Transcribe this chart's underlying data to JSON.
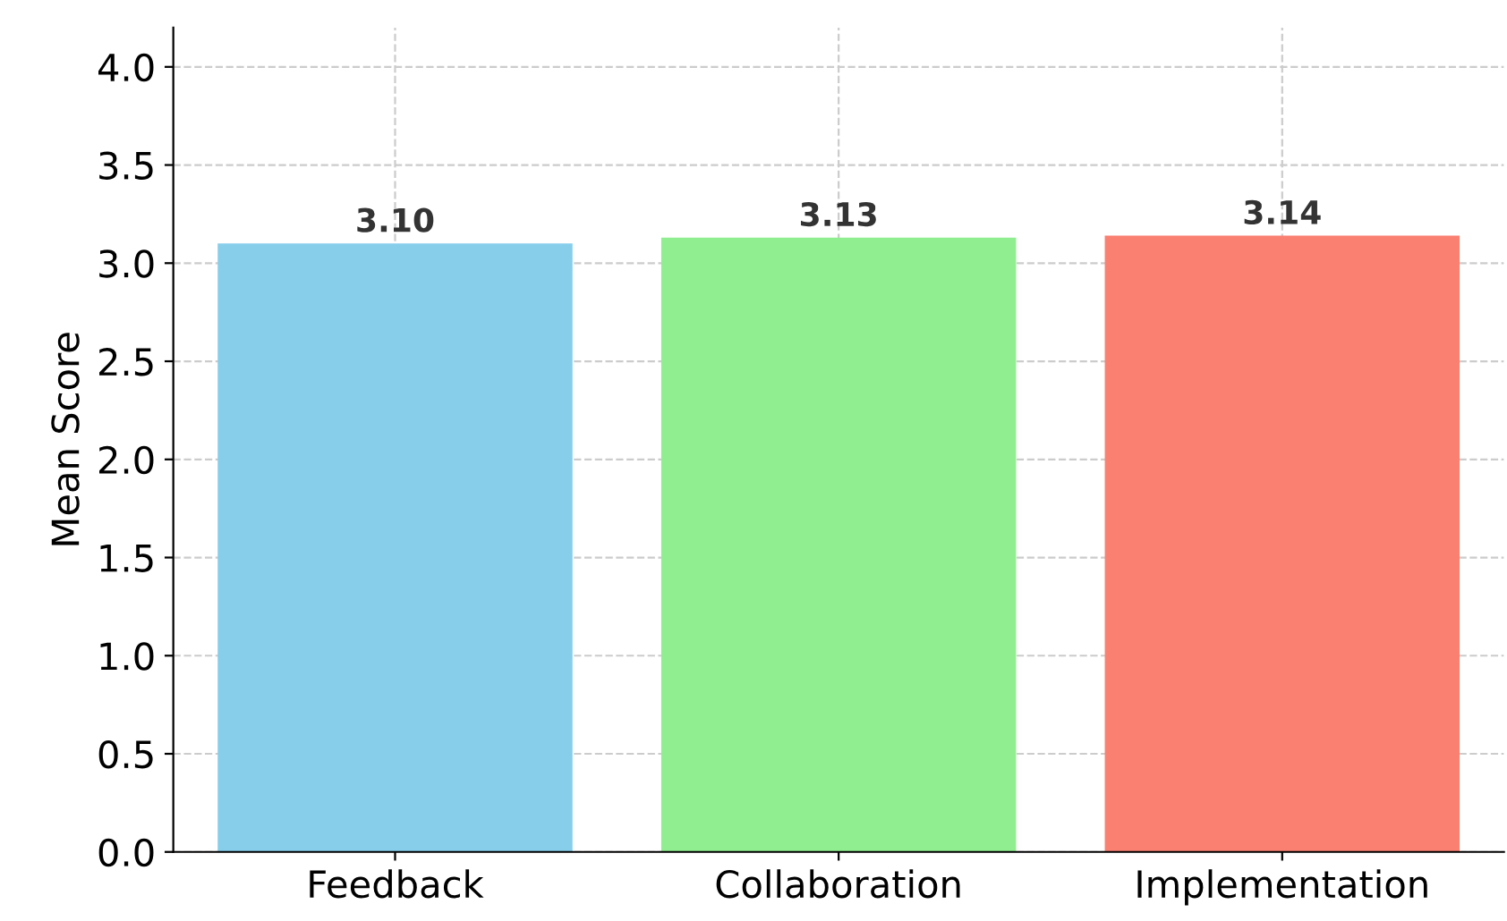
{
  "chart_data": {
    "type": "bar",
    "ylabel": "Mean Score",
    "categories": [
      "Feedback",
      "Collaboration",
      "Implementation"
    ],
    "values": [
      3.1,
      3.13,
      3.14
    ],
    "value_labels": [
      "3.10",
      "3.13",
      "3.14"
    ],
    "colors": [
      "#87ceeb",
      "#90ee90",
      "#fa8072"
    ],
    "ylim": [
      0,
      4.2
    ],
    "yticks": [
      {
        "value": 0,
        "label": "0.0"
      },
      0.5,
      {
        "value": 1,
        "label": "1.0"
      },
      1.5,
      {
        "value": 2,
        "label": "2.0"
      },
      2.5,
      {
        "value": 3,
        "label": "3.0"
      },
      3.5,
      {
        "value": 4,
        "label": "4.0"
      }
    ],
    "grid": true,
    "legend": false
  }
}
